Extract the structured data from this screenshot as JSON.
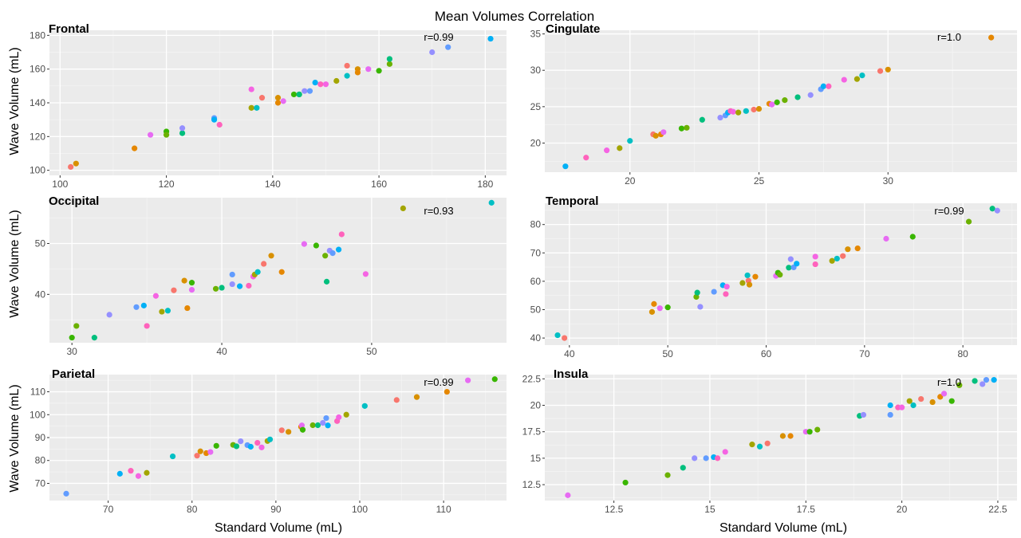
{
  "figure_title": "Mean Volumes Correlation",
  "y_axis_label": "Wave Volume (mL)",
  "x_axis_label": "Standard Volume (mL)",
  "point_palette": [
    "#F8766D",
    "#E76BF3",
    "#00BF7D",
    "#00B0F6",
    "#A3A500",
    "#D89000",
    "#39B600",
    "#9590FF",
    "#FF62BC",
    "#00BFC4",
    "#E58700",
    "#6BB100",
    "#619CFF",
    "#F564E3"
  ],
  "colors": {
    "panel_bg": "#EBEBEB",
    "grid_major": "#FFFFFF",
    "grid_minor": "#F5F5F5",
    "text": "#000000",
    "tick_text": "#4D4D4D"
  },
  "chart_data": [
    {
      "type": "scatter",
      "title": "Frontal",
      "annotation": "r=0.99",
      "xlim": [
        98,
        184
      ],
      "ylim": [
        97,
        183
      ],
      "xticks": [
        100,
        120,
        140,
        160,
        180
      ],
      "yticks": [
        100,
        120,
        140,
        160,
        180
      ],
      "x": [
        102,
        103,
        114,
        117,
        120,
        120,
        123,
        123,
        129,
        129,
        130,
        136,
        136,
        137,
        138,
        141,
        141,
        142,
        144,
        145,
        145,
        146,
        147,
        148,
        149,
        150,
        152,
        154,
        154,
        156,
        156,
        158,
        160,
        162,
        162,
        170,
        173,
        181
      ],
      "y": [
        102,
        104,
        113,
        121,
        123,
        121,
        122,
        125,
        131,
        130,
        127,
        148,
        137,
        137,
        143,
        143,
        140,
        141,
        145,
        145,
        145,
        147,
        147,
        152,
        151,
        151,
        153,
        156,
        162,
        160,
        158,
        160,
        159,
        163,
        166,
        170,
        173,
        178
      ]
    },
    {
      "type": "scatter",
      "title": "Cingulate",
      "annotation": "r=1.0",
      "xlim": [
        16.7,
        35.0
      ],
      "ylim": [
        16.0,
        35.5
      ],
      "xticks": [
        20,
        25,
        30
      ],
      "yticks": [
        20,
        25,
        30,
        35
      ],
      "x": [
        17.5,
        18.3,
        19.1,
        19.6,
        20.0,
        20.9,
        21.0,
        21.2,
        21.3,
        22.0,
        22.2,
        22.8,
        23.5,
        23.7,
        23.8,
        23.9,
        24.0,
        24.2,
        24.5,
        24.8,
        25.0,
        25.4,
        25.5,
        25.7,
        26.0,
        26.5,
        27.0,
        27.4,
        27.5,
        27.7,
        28.3,
        28.8,
        29.0,
        29.7,
        30.0,
        34.0
      ],
      "y": [
        16.8,
        18.0,
        19.0,
        19.3,
        20.3,
        21.2,
        21.0,
        21.2,
        21.5,
        22.0,
        22.1,
        23.2,
        23.5,
        23.8,
        24.2,
        24.4,
        24.3,
        24.2,
        24.4,
        24.6,
        24.7,
        25.4,
        25.3,
        25.6,
        25.9,
        26.3,
        26.6,
        27.4,
        27.8,
        27.8,
        28.7,
        28.8,
        29.3,
        29.9,
        30.1,
        34.5
      ]
    },
    {
      "type": "scatter",
      "title": "Occipital",
      "annotation": "r=0.93",
      "xlim": [
        28.5,
        59.0
      ],
      "ylim": [
        30.5,
        59.0
      ],
      "xticks": [
        30,
        40,
        50
      ],
      "yticks": [
        40,
        50
      ],
      "x": [
        30.0,
        30.3,
        31.5,
        32.5,
        34.3,
        34.8,
        35.0,
        35.6,
        36.0,
        36.4,
        36.8,
        37.5,
        37.7,
        38.0,
        38.0,
        39.6,
        40.0,
        40.7,
        40.7,
        41.2,
        41.8,
        42.1,
        42.2,
        42.4,
        42.8,
        43.3,
        44.0,
        45.5,
        46.3,
        46.9,
        47.0,
        47.2,
        47.4,
        47.8,
        48.0,
        49.6,
        52.1,
        58.0
      ],
      "y": [
        31.5,
        33.8,
        31.5,
        36.0,
        37.5,
        37.8,
        33.8,
        39.7,
        36.6,
        36.8,
        40.8,
        42.7,
        37.3,
        40.9,
        42.3,
        41.1,
        41.3,
        42.0,
        43.9,
        41.6,
        41.7,
        43.5,
        43.9,
        44.4,
        46.0,
        47.6,
        44.4,
        49.9,
        49.6,
        47.6,
        42.5,
        48.6,
        48.1,
        48.8,
        51.8,
        44.0,
        56.9,
        58.0
      ]
    },
    {
      "type": "scatter",
      "title": "Temporal",
      "annotation": "r=0.99",
      "xlim": [
        37.5,
        85.5
      ],
      "ylim": [
        37.5,
        87.5
      ],
      "xticks": [
        40,
        50,
        60,
        70,
        80
      ],
      "yticks": [
        40,
        50,
        60,
        70,
        80
      ],
      "x": [
        38.8,
        39.5,
        48.4,
        48.6,
        49.2,
        50.0,
        52.9,
        53.0,
        53.3,
        54.7,
        55.6,
        55.9,
        56.0,
        57.6,
        58.1,
        58.2,
        58.3,
        58.9,
        61.0,
        61.2,
        61.4,
        62.3,
        62.5,
        62.8,
        63.1,
        65.0,
        65.0,
        66.7,
        67.2,
        67.8,
        68.3,
        69.3,
        72.2,
        74.9,
        80.6,
        83.0,
        83.5
      ],
      "y": [
        41.0,
        40.0,
        49.2,
        52.0,
        50.5,
        50.8,
        54.5,
        56.0,
        51.0,
        56.3,
        58.6,
        55.5,
        58.1,
        59.4,
        62.1,
        60.2,
        58.8,
        61.6,
        61.9,
        63.0,
        62.3,
        64.8,
        67.8,
        64.9,
        66.2,
        66.0,
        68.7,
        67.2,
        68.0,
        68.9,
        71.3,
        71.6,
        75.0,
        75.7,
        81.0,
        85.6,
        84.9
      ]
    },
    {
      "type": "scatter",
      "title": "Parietal",
      "annotation": "r=0.99",
      "xlim": [
        63.0,
        117.5
      ],
      "ylim": [
        62.5,
        117.5
      ],
      "xticks": [
        70,
        80,
        90,
        100,
        110
      ],
      "yticks": [
        70,
        80,
        90,
        100,
        110
      ],
      "x": [
        65.0,
        71.4,
        72.7,
        73.6,
        74.6,
        77.7,
        80.6,
        81.0,
        81.7,
        82.2,
        82.9,
        84.9,
        85.3,
        85.8,
        86.6,
        87.0,
        87.8,
        88.3,
        89.0,
        89.3,
        90.7,
        91.5,
        93.0,
        93.1,
        93.2,
        94.4,
        95.0,
        95.6,
        96.0,
        96.2,
        97.3,
        97.5,
        98.4,
        100.6,
        104.4,
        106.8,
        110.4,
        112.9,
        116.1
      ],
      "y": [
        65.5,
        74.2,
        75.5,
        73.2,
        74.6,
        81.8,
        82.1,
        84.0,
        83.2,
        83.7,
        86.4,
        86.8,
        86.2,
        88.4,
        86.7,
        86.0,
        87.7,
        85.7,
        88.5,
        89.2,
        93.2,
        92.5,
        94.7,
        95.3,
        93.4,
        95.4,
        95.4,
        96.4,
        98.5,
        95.3,
        97.2,
        98.9,
        100.0,
        103.8,
        106.4,
        107.7,
        110.0,
        115.0,
        115.5
      ]
    },
    {
      "type": "scatter",
      "title": "Insula",
      "annotation": "r=1.0",
      "xlim": [
        10.7,
        23.0
      ],
      "ylim": [
        11.0,
        22.9
      ],
      "xticks": [
        12.5,
        15.0,
        17.5,
        20.0,
        22.5
      ],
      "yticks": [
        12.5,
        15.0,
        17.5,
        20.0,
        22.5
      ],
      "x": [
        11.3,
        12.8,
        13.9,
        14.3,
        14.6,
        14.9,
        15.1,
        15.2,
        15.4,
        16.1,
        16.3,
        16.5,
        16.9,
        17.1,
        17.5,
        17.6,
        17.8,
        18.9,
        19.0,
        19.7,
        19.7,
        19.9,
        20.0,
        20.2,
        20.3,
        20.5,
        20.8,
        21.0,
        21.1,
        21.3,
        21.5,
        21.9,
        22.1,
        22.2,
        22.4
      ],
      "y": [
        11.5,
        12.7,
        13.4,
        14.1,
        15.0,
        15.0,
        15.1,
        15.0,
        15.6,
        16.3,
        16.1,
        16.4,
        17.1,
        17.1,
        17.5,
        17.5,
        17.7,
        19.0,
        19.1,
        19.1,
        20.0,
        19.8,
        19.8,
        20.4,
        20.0,
        20.6,
        20.3,
        20.8,
        21.1,
        20.4,
        21.9,
        22.3,
        22.0,
        22.4,
        22.4
      ]
    }
  ]
}
